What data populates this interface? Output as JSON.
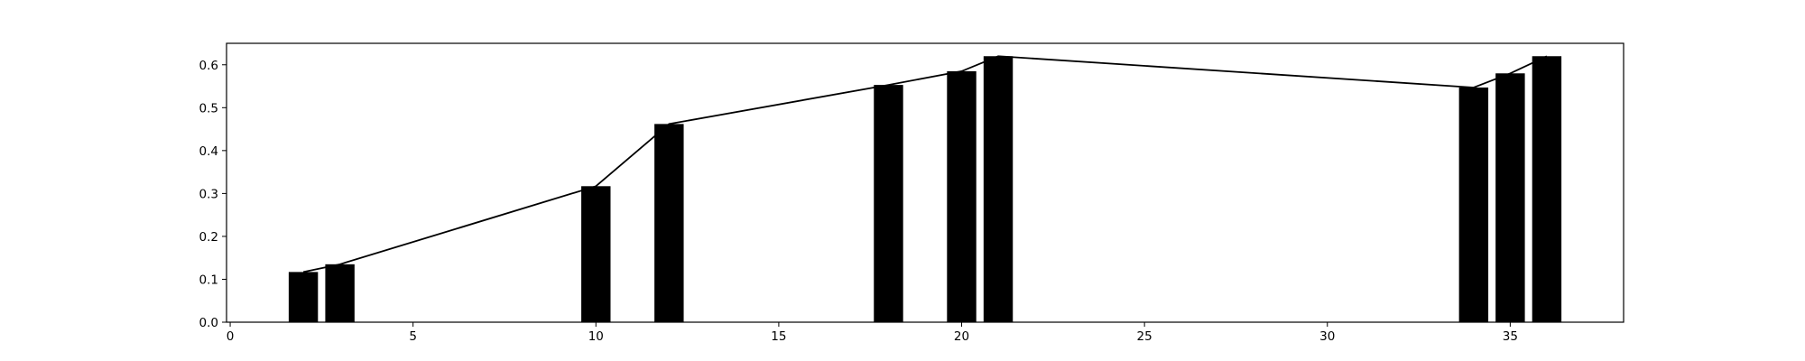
{
  "chart_data": {
    "type": "bar",
    "x": [
      2,
      3,
      10,
      12,
      18,
      20,
      21,
      34,
      35,
      36
    ],
    "values": [
      0.117,
      0.135,
      0.317,
      0.462,
      0.553,
      0.585,
      0.62,
      0.547,
      0.58,
      0.62
    ],
    "bar_width": 0.8,
    "overlay_line": true,
    "title": "",
    "xlabel": "",
    "ylabel": "",
    "xlim": [
      -0.1,
      38.1
    ],
    "ylim": [
      0,
      0.65
    ],
    "xticks": [
      0,
      5,
      10,
      15,
      20,
      25,
      30,
      35
    ],
    "yticks": [
      0.0,
      0.1,
      0.2,
      0.3,
      0.4,
      0.5,
      0.6
    ],
    "xtick_labels": [
      "0",
      "5",
      "10",
      "15",
      "20",
      "25",
      "30",
      "35"
    ],
    "ytick_labels": [
      "0.0",
      "0.1",
      "0.2",
      "0.3",
      "0.4",
      "0.5",
      "0.6"
    ],
    "grid": false,
    "legend": "none",
    "colors": {
      "bar": "#000000",
      "line": "#000000",
      "axes": "#000000",
      "background": "#ffffff"
    }
  }
}
